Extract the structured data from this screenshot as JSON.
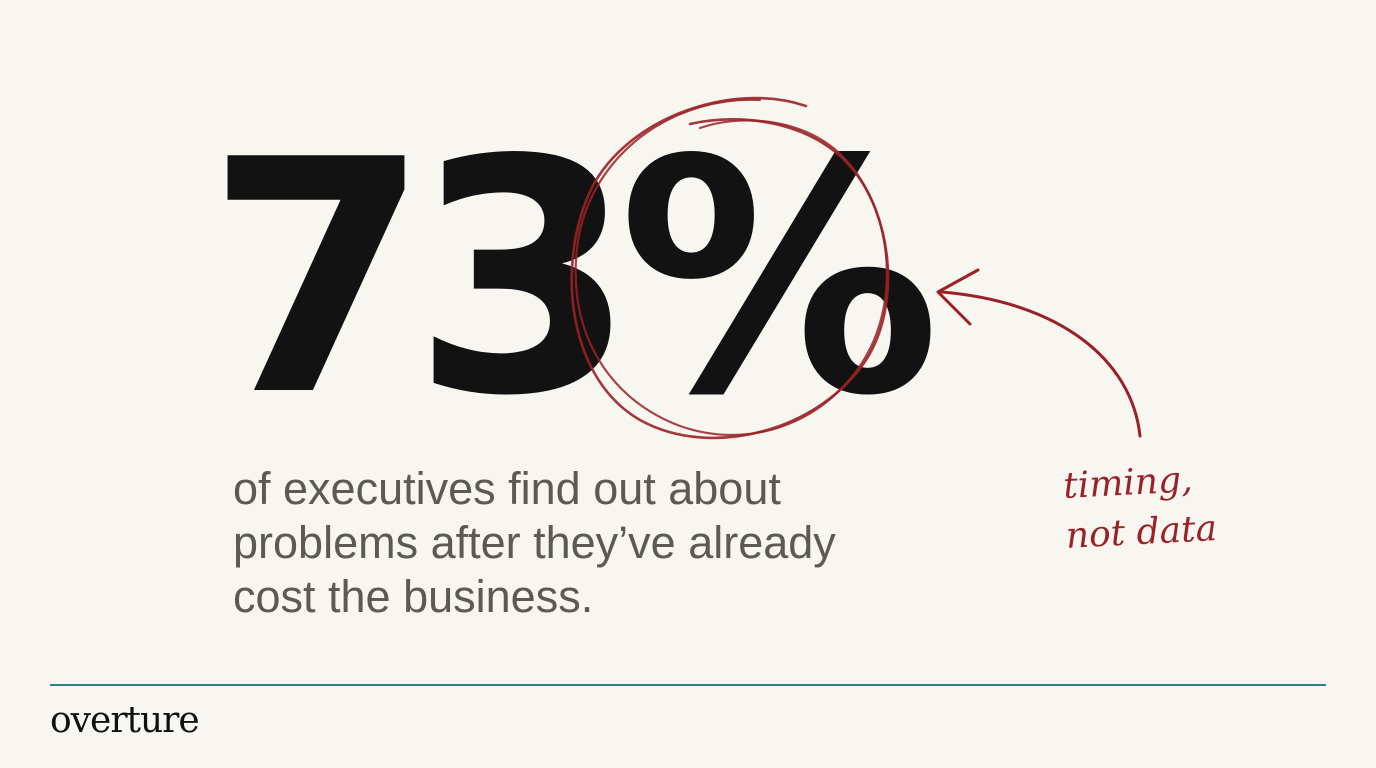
{
  "slide": {
    "stat_value": "73%",
    "caption_lines": [
      "of executives find out about",
      "problems after they’ve already",
      "cost the business."
    ],
    "annotation_lines": [
      "timing,",
      "not data"
    ],
    "brand": "overture"
  },
  "colors": {
    "background": "#f8f6f1",
    "stat_text": "#121212",
    "caption_text": "#5e5a52",
    "annotation_ink": "#9a2226",
    "divider": "#2f7f86",
    "brand_text": "#111111"
  }
}
